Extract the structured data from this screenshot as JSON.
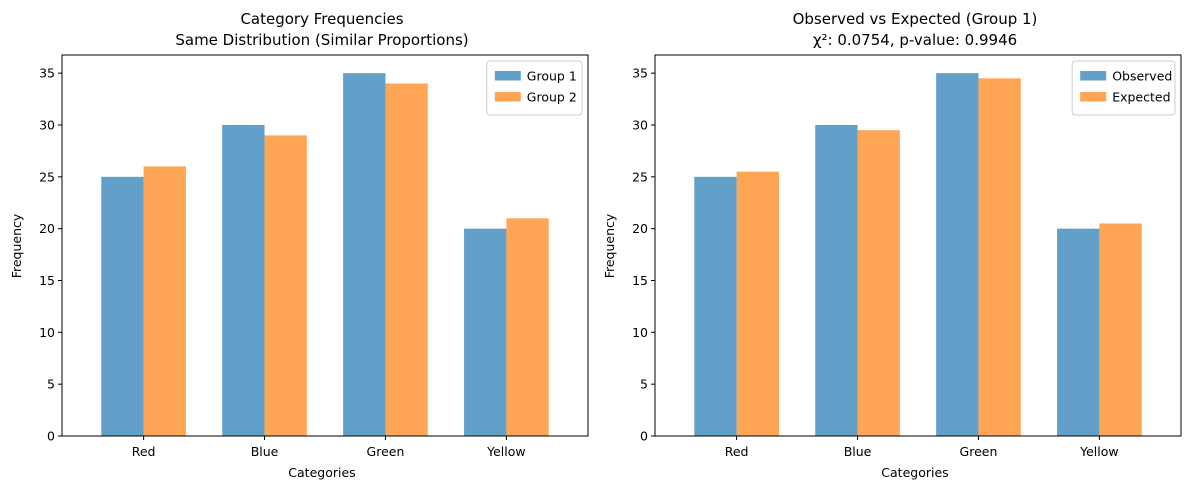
{
  "chart_data": [
    {
      "type": "bar",
      "title": "Category Frequencies",
      "subtitle": "Same Distribution (Similar Proportions)",
      "xlabel": "Categories",
      "ylabel": "Frequency",
      "categories": [
        "Red",
        "Blue",
        "Green",
        "Yellow"
      ],
      "series": [
        {
          "name": "Group 1",
          "values": [
            25,
            30,
            35,
            20
          ],
          "color": "#1f77b4"
        },
        {
          "name": "Group 2",
          "values": [
            26,
            29,
            34,
            21
          ],
          "color": "#ff7f0e"
        }
      ],
      "ylim": [
        0,
        36.75
      ],
      "yticks": [
        "0",
        "5",
        "10",
        "15",
        "20",
        "25",
        "30",
        "35"
      ],
      "bar_opacity": 0.7,
      "grid": false,
      "legend_position": "top-right"
    },
    {
      "type": "bar",
      "title": "Observed vs Expected (Group 1)",
      "subtitle": "χ²: 0.0754, p-value: 0.9946",
      "xlabel": "Categories",
      "ylabel": "Frequency",
      "categories": [
        "Red",
        "Blue",
        "Green",
        "Yellow"
      ],
      "series": [
        {
          "name": "Observed",
          "values": [
            25,
            30,
            35,
            20
          ],
          "color": "#1f77b4"
        },
        {
          "name": "Expected",
          "values": [
            25.5,
            29.5,
            34.5,
            20.5
          ],
          "color": "#ff7f0e"
        }
      ],
      "ylim": [
        0,
        36.75
      ],
      "yticks": [
        "0",
        "5",
        "10",
        "15",
        "20",
        "25",
        "30",
        "35"
      ],
      "bar_opacity": 0.7,
      "grid": false,
      "legend_position": "top-right"
    }
  ]
}
